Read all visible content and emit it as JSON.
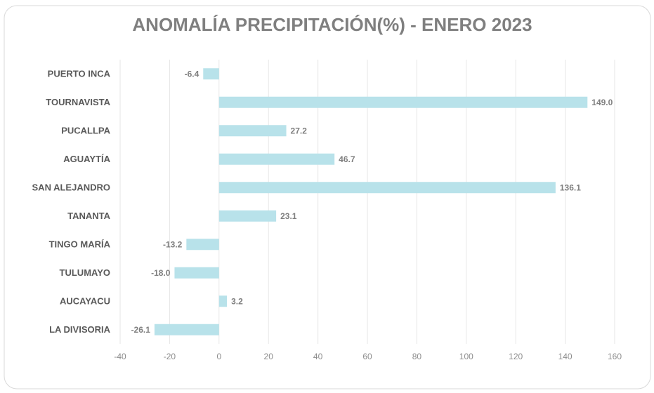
{
  "chart_data": {
    "type": "barh",
    "title": "ANOMALÍA PRECIPITACIÓN(%) - ENERO 2023",
    "categories": [
      "PUERTO INCA",
      "TOURNAVISTA",
      "PUCALLPA",
      "AGUAYTÍA",
      "SAN ALEJANDRO",
      "TANANTA",
      "TINGO MARÍA",
      "TULUMAYO",
      "AUCAYACU",
      "LA DIVISORIA"
    ],
    "values": [
      -6.4,
      149.0,
      27.2,
      46.7,
      136.1,
      23.1,
      -13.2,
      -18.0,
      3.2,
      -26.1
    ],
    "value_labels": [
      "-6.4",
      "149.0",
      "27.2",
      "46.7",
      "136.1",
      "23.1",
      "-13.2",
      "-18.0",
      "3.2",
      "-26.1"
    ],
    "color": "#b8e2ea",
    "xlim": [
      -40,
      160
    ],
    "xticks": [
      -40,
      -20,
      0,
      20,
      40,
      60,
      80,
      100,
      120,
      140,
      160
    ],
    "grid": true
  }
}
